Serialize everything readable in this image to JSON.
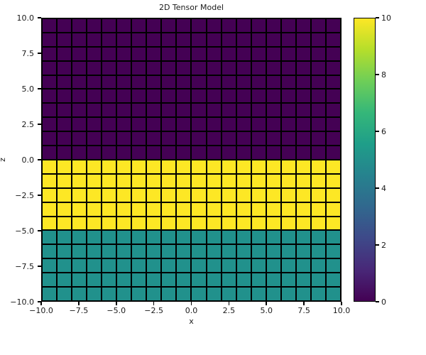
{
  "figure": {
    "title": "2D Tensor Model",
    "xlabel": "x",
    "ylabel": "z",
    "background": "#ffffff"
  },
  "x_axis": {
    "tick_labels": [
      "−10.0",
      "−7.5",
      "−5.0",
      "−2.5",
      "0.0",
      "2.5",
      "5.0",
      "7.5",
      "10.0"
    ]
  },
  "y_axis": {
    "tick_labels": [
      "10.0",
      "7.5",
      "5.0",
      "2.5",
      "0.0",
      "−2.5",
      "−5.0",
      "−7.5",
      "−10.0"
    ]
  },
  "colorbar": {
    "tick_labels_top_to_bottom": [
      "10",
      "8",
      "6",
      "4",
      "2",
      "0"
    ],
    "gradient_stops_bottom_to_top": [
      "#440154",
      "#482878",
      "#3e4989",
      "#31688e",
      "#26828e",
      "#1f9e89",
      "#35b779",
      "#6ece58",
      "#b5de2b",
      "#fde725"
    ]
  },
  "colors": {
    "cell_edge": "#000000",
    "value_colors": {
      "0": "#440154",
      "5": "#21918c",
      "10": "#fde725"
    }
  },
  "chart_data": {
    "type": "heatmap",
    "title": "2D Tensor Model",
    "xlabel": "x",
    "ylabel": "z",
    "xlim": [
      -10,
      10
    ],
    "ylim": [
      -10,
      10
    ],
    "x_ticks": [
      -10,
      -7.5,
      -5,
      -2.5,
      0,
      2.5,
      5,
      7.5,
      10
    ],
    "y_ticks": [
      10,
      7.5,
      5,
      2.5,
      0,
      -2.5,
      -5,
      -7.5,
      -10
    ],
    "grid": {
      "ncols": 20,
      "nrows": 20,
      "cell_width_x": 1,
      "cell_height_z": 1,
      "edges": "black"
    },
    "colormap": "viridis",
    "vmin": 0,
    "vmax": 10,
    "colorbar_ticks": [
      0,
      2,
      4,
      6,
      8,
      10
    ],
    "legend": "colorbar-right",
    "regions": [
      {
        "z_from": 0,
        "z_to": 10,
        "value": 0,
        "color": "#440154"
      },
      {
        "z_from": -5,
        "z_to": 0,
        "value": 10,
        "color": "#fde725"
      },
      {
        "z_from": -10,
        "z_to": -5,
        "value": 5,
        "color": "#21918c"
      }
    ],
    "row_values_top_to_bottom": [
      0,
      0,
      0,
      0,
      0,
      0,
      0,
      0,
      0,
      0,
      10,
      10,
      10,
      10,
      10,
      5,
      5,
      5,
      5,
      5
    ]
  }
}
